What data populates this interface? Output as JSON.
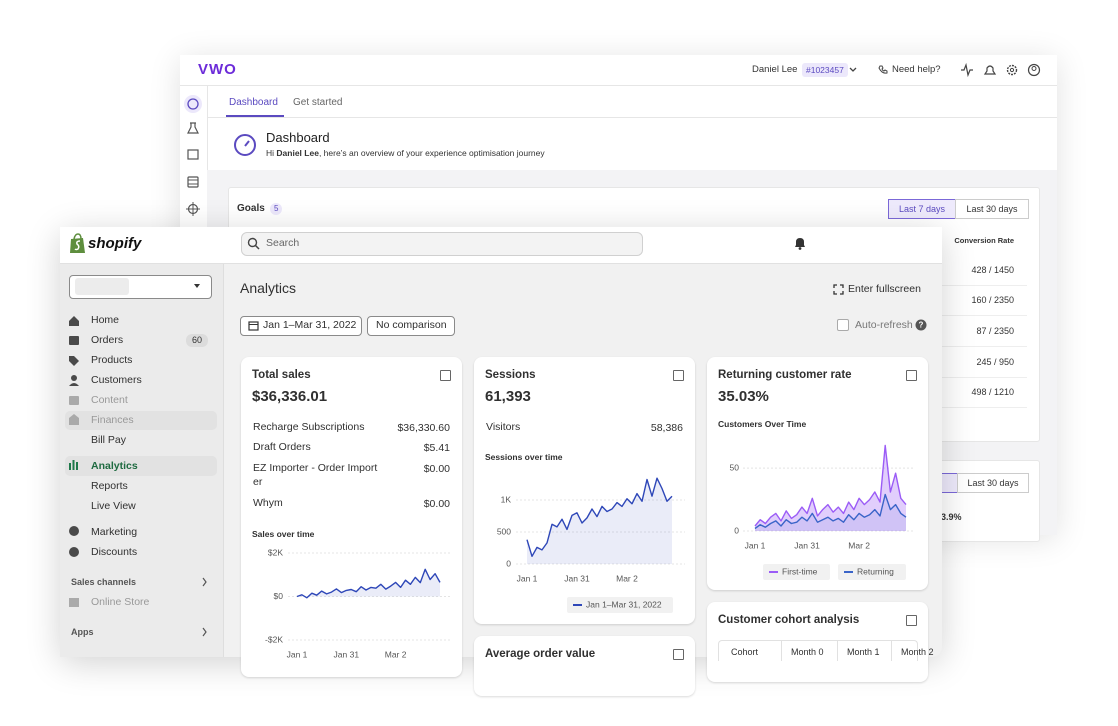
{
  "vwo": {
    "logo": "VWO",
    "user": "Daniel Lee",
    "account": "#1023457",
    "help": "Need help?",
    "tabs": [
      "Dashboard",
      "Get started"
    ],
    "heading": "Dashboard",
    "greeting": {
      "prefix": "Hi",
      "name": "Daniel Lee",
      "rest": ", here’s an overview of your experience optimisation journey"
    },
    "goals": {
      "title": "Goals",
      "count": 5,
      "ranges": [
        "Last 7 days",
        "Last 30 days"
      ],
      "column": "Conversion Rate",
      "rows": [
        "428 / 1450",
        "160 / 2350",
        "87 / 2350",
        "245 / 950",
        "498 / 1210"
      ]
    },
    "second_card": {
      "range": "Last 30 days",
      "value": "3.9%"
    }
  },
  "shopify": {
    "logo": "shopify",
    "search": "Search",
    "nav": [
      "Home",
      "Orders",
      "Products",
      "Customers",
      "Content",
      "Finances",
      "Bill Pay",
      "Analytics",
      "Reports",
      "Live View",
      "Marketing",
      "Discounts"
    ],
    "orders_badge": 60,
    "sales_channels": "Sales channels",
    "online_store": "Online Store",
    "apps": "Apps",
    "page_title": "Analytics",
    "fullscreen": "Enter fullscreen",
    "date_range": "Jan 1–Mar 31, 2022",
    "comparison": "No comparison",
    "auto_refresh": "Auto-refresh",
    "cards": [
      {
        "title": "Total sales",
        "value": "$36,336.01",
        "rows": [
          {
            "label": "Recharge Subscriptions",
            "value": "$36,330.60"
          },
          {
            "label": "Draft Orders",
            "value": "$5.41"
          },
          {
            "label": "EZ Importer - Order Import er",
            "value": "$0.00"
          },
          {
            "label": "Whym",
            "value": "$0.00"
          }
        ],
        "chart": {
          "type": "line",
          "title": "Sales over time",
          "categories": [
            "Jan 1",
            null,
            null,
            null,
            null,
            null,
            null,
            null,
            null,
            null,
            "Jan 31",
            null,
            null,
            null,
            null,
            null,
            null,
            null,
            null,
            null,
            "Mar 2",
            null,
            null,
            null,
            null,
            null,
            null,
            null,
            null,
            null
          ],
          "ylim": [
            -2000,
            2000
          ],
          "yticks": [
            {
              "value": 2000,
              "label": "$2K"
            },
            {
              "value": 0,
              "label": "$0"
            },
            {
              "value": -2000,
              "label": "-$2K"
            }
          ],
          "grid": true,
          "series": [
            {
              "color": "#2e47b8",
              "values": [
                0,
                80,
                -60,
                150,
                60,
                250,
                120,
                200,
                350,
                180,
                280,
                320,
                220,
                450,
                300,
                420,
                380,
                560,
                340,
                480,
                650,
                420,
                750,
                560,
                880,
                640,
                1250,
                780,
                1050,
                650
              ]
            }
          ]
        }
      },
      {
        "title": "Sessions",
        "value": "61,393",
        "rows": [
          {
            "label": "Visitors",
            "value": "58,386"
          }
        ],
        "chart": {
          "type": "line",
          "title": "Sessions over time",
          "categories": [
            "Jan 1",
            null,
            null,
            null,
            null,
            null,
            null,
            null,
            null,
            null,
            "Jan 31",
            null,
            null,
            null,
            null,
            null,
            null,
            null,
            null,
            null,
            "Mar 2",
            null,
            null,
            null,
            null,
            null,
            null,
            null,
            null,
            null
          ],
          "ylim": [
            0,
            1500
          ],
          "yticks": [
            {
              "value": 1000,
              "label": "1K"
            },
            500,
            0
          ],
          "grid": true,
          "series": [
            {
              "name": "Jan 1–Mar 31, 2022",
              "color": "#2e47b8",
              "values": [
                380,
                120,
                260,
                220,
                330,
                620,
                580,
                700,
                540,
                760,
                800,
                640,
                720,
                860,
                740,
                900,
                820,
                860,
                960,
                900,
                1020,
                940,
                1100,
                980,
                1320,
                1060,
                1340,
                1180,
                980,
                1060
              ]
            }
          ]
        }
      },
      {
        "title": "Returning customer rate",
        "value": "35.03%",
        "chart": {
          "type": "line",
          "title": "Customers Over Time",
          "categories": [
            "Jan 1",
            null,
            null,
            null,
            null,
            null,
            null,
            null,
            null,
            null,
            "Jan 31",
            null,
            null,
            null,
            null,
            null,
            null,
            null,
            null,
            null,
            "Mar 2",
            null,
            null,
            null,
            null,
            null,
            null,
            null,
            null,
            null
          ],
          "ylim": [
            0,
            70
          ],
          "yticks": [
            50,
            0
          ],
          "grid": true,
          "series": [
            {
              "name": "First-time",
              "color": "#9b5cf6",
              "values": [
                4,
                9,
                6,
                11,
                14,
                8,
                16,
                10,
                13,
                19,
                14,
                26,
                12,
                17,
                21,
                15,
                19,
                14,
                23,
                17,
                26,
                21,
                25,
                31,
                23,
                68,
                31,
                46,
                26,
                21
              ]
            },
            {
              "name": "Returning",
              "color": "#3a64c8",
              "values": [
                2,
                5,
                3,
                6,
                8,
                4,
                9,
                6,
                7,
                11,
                8,
                14,
                7,
                9,
                11,
                8,
                10,
                7,
                13,
                9,
                14,
                11,
                13,
                17,
                12,
                29,
                17,
                21,
                14,
                11
              ]
            }
          ]
        }
      },
      {
        "title": "Customer cohort analysis",
        "columns": [
          "Cohort",
          "Month 0",
          "Month 1",
          "Month 2"
        ]
      },
      {
        "title": "Average order value"
      }
    ]
  }
}
